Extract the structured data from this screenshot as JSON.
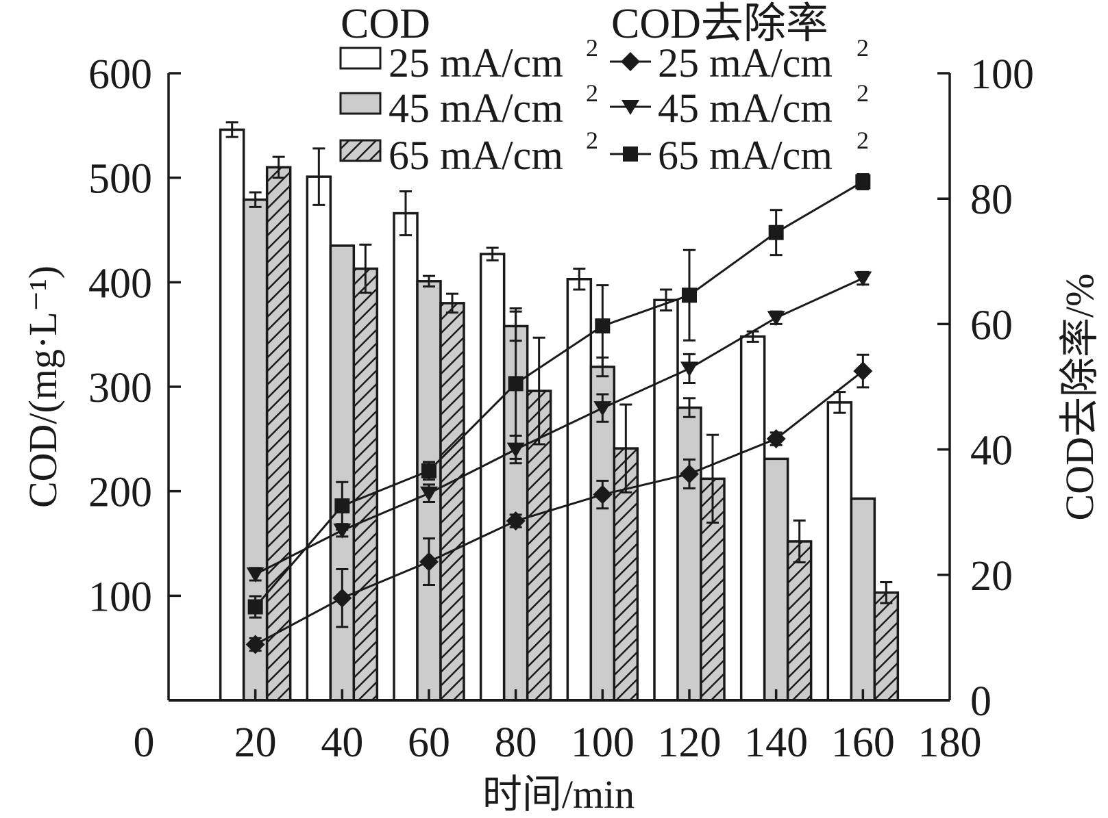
{
  "chart_data": {
    "type": "bar",
    "combo": "grouped bars (left axis) + line/scatter with error bars (right axis)",
    "xlabel": "时间/min",
    "ylabel_left": "COD/(mg·L⁻¹)",
    "ylabel_right": "COD去除率/%",
    "xlim": [
      0,
      180
    ],
    "x_ticks": [
      0,
      20,
      40,
      60,
      80,
      100,
      120,
      140,
      160,
      180
    ],
    "ylim_left": [
      0,
      600
    ],
    "y_ticks_left": [
      100,
      200,
      300,
      400,
      500,
      600
    ],
    "ylim_right": [
      0,
      100
    ],
    "y_ticks_right": [
      0,
      20,
      40,
      60,
      80,
      100
    ],
    "grid": false,
    "legend_placement": "top",
    "legend": {
      "bar_heading": "COD",
      "line_heading": "COD去除率",
      "unit_suffix": " mA/cm",
      "unit_sup": "2"
    },
    "x": [
      20,
      40,
      60,
      80,
      100,
      120,
      140,
      160
    ],
    "bar_series": [
      {
        "name": "25 mA/cm2",
        "label": "25",
        "fill": "#ffffff",
        "pattern": "none",
        "values": [
          546,
          501,
          466,
          427,
          403,
          383,
          348,
          285
        ],
        "errors": [
          7,
          27,
          21,
          6,
          10,
          10,
          5,
          10
        ]
      },
      {
        "name": "45 mA/cm2",
        "label": "45",
        "fill": "#cccccc",
        "pattern": "none",
        "values": [
          479,
          435,
          401,
          358,
          319,
          280,
          231,
          193
        ],
        "errors": [
          7,
          null,
          5,
          14,
          9,
          9,
          null,
          null
        ]
      },
      {
        "name": "65 mA/cm2",
        "label": "65",
        "fill": "#cccccc",
        "pattern": "hatch",
        "values": [
          510,
          413,
          380,
          296,
          241,
          212,
          152,
          103
        ],
        "errors": [
          10,
          23,
          9,
          51,
          42,
          42,
          20,
          10
        ]
      }
    ],
    "line_series": [
      {
        "name": "25 mA/cm2",
        "label": "25",
        "marker": "diamond",
        "values": [
          8.9,
          16.3,
          22.1,
          28.6,
          32.8,
          36.1,
          41.7,
          52.5
        ],
        "errors": [
          1,
          4.6,
          3.7,
          1,
          2.2,
          2.3,
          1,
          2.6
        ]
      },
      {
        "name": "45 mA/cm2",
        "label": "45",
        "marker": "triangle-down",
        "values": [
          20.1,
          27.1,
          33.0,
          40.0,
          46.6,
          52.9,
          61.0,
          67.3
        ],
        "errors": [
          1,
          1,
          1.4,
          2.2,
          2.2,
          2.3,
          1,
          1
        ]
      },
      {
        "name": "65 mA/cm2",
        "label": "65",
        "marker": "square",
        "values": [
          14.9,
          31.0,
          36.6,
          50.5,
          59.7,
          64.6,
          74.6,
          82.7
        ],
        "errors": [
          1.7,
          3.8,
          1.4,
          12,
          6.5,
          7.2,
          3.6,
          1.2
        ]
      }
    ],
    "colors": {
      "axis": "#1a1a1a",
      "gray_fill": "#cccccc",
      "marker": "#1a1a1a"
    }
  }
}
